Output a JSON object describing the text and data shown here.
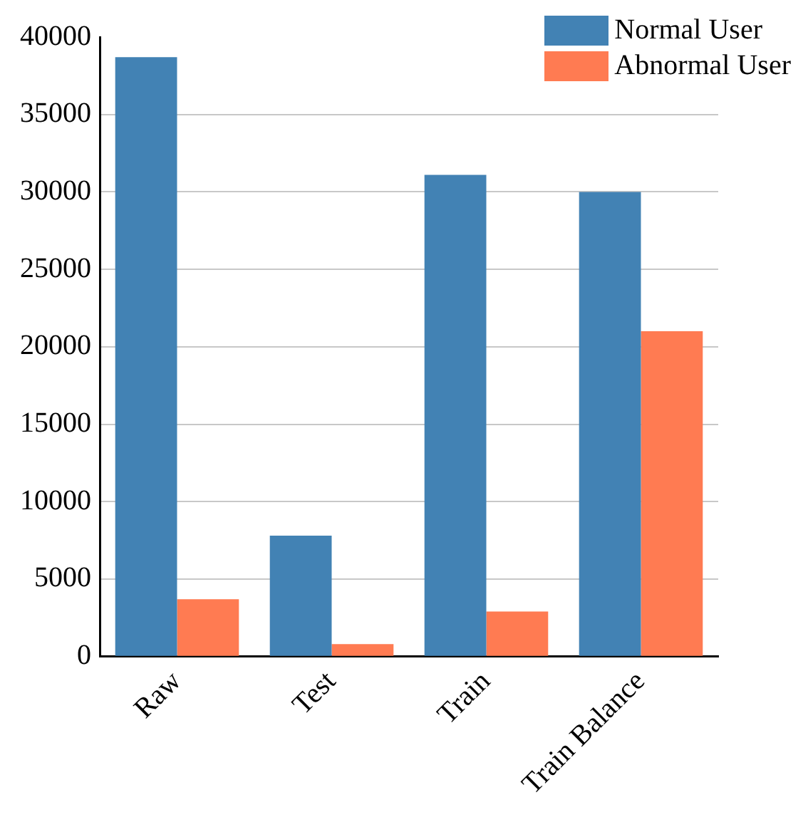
{
  "chart_data": {
    "type": "bar",
    "categories": [
      "Raw",
      "Test",
      "Train",
      "Train Balance"
    ],
    "series": [
      {
        "name": "Normal User",
        "color": "#4282b4",
        "values": [
          38700,
          7800,
          31100,
          30000
        ]
      },
      {
        "name": "Abnormal User",
        "color": "#ff7b52",
        "values": [
          3700,
          800,
          2900,
          21000
        ]
      }
    ],
    "ylim": [
      0,
      40000
    ],
    "yticks": [
      0,
      5000,
      10000,
      15000,
      20000,
      25000,
      30000,
      35000,
      40000
    ],
    "grid": "y",
    "legend": "top right"
  }
}
